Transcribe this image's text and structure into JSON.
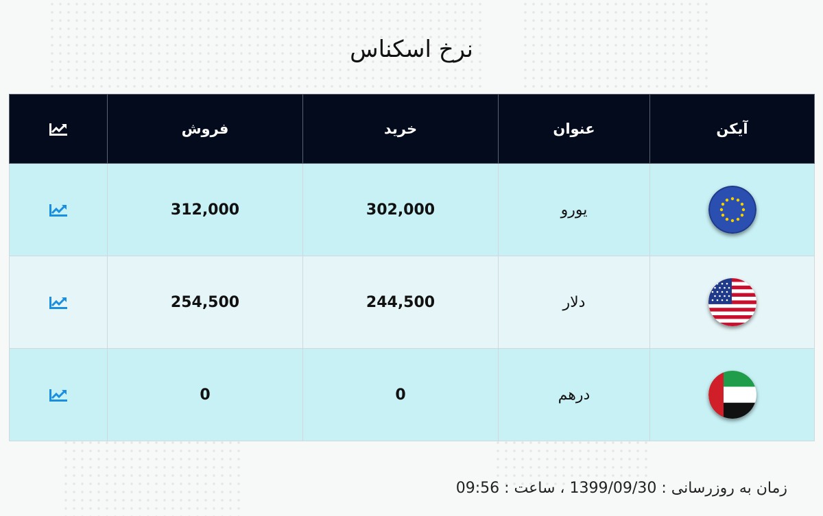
{
  "title": "نرخ اسکناس",
  "table": {
    "headers": {
      "icon": "آیکن",
      "name": "عنوان",
      "buy": "خرید",
      "sell": "فروش",
      "chart_icon": "chart-line-icon"
    },
    "rows": [
      {
        "flag_icon": "eu-flag-icon",
        "name": "یورو",
        "buy": "302,000",
        "sell": "312,000",
        "chart_icon": "chart-line-icon"
      },
      {
        "flag_icon": "us-flag-icon",
        "name": "دلار",
        "buy": "244,500",
        "sell": "254,500",
        "chart_icon": "chart-line-icon"
      },
      {
        "flag_icon": "uae-flag-icon",
        "name": "درهم",
        "buy": "0",
        "sell": "0",
        "chart_icon": "chart-line-icon"
      }
    ]
  },
  "footer": {
    "label": "زمان به روزرسانی :",
    "date": "1399/09/30",
    "separator": "،",
    "time_label": "ساعت :",
    "time": "09:56"
  },
  "colors": {
    "header_bg": "#040b1d",
    "row_even_bg": "#c8f1f5",
    "row_odd_bg": "#e6f5f7",
    "chart_icon": "#1a8fe0"
  }
}
